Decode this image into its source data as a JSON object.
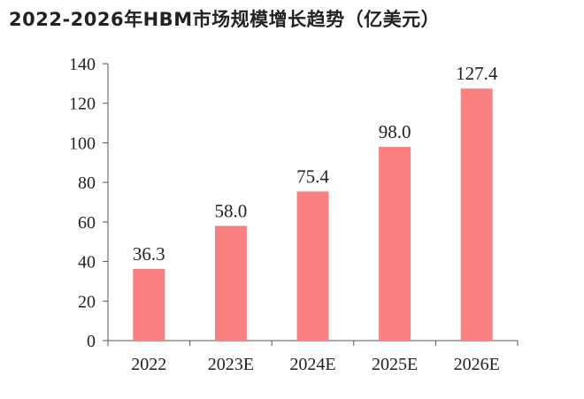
{
  "chart_data": {
    "type": "bar",
    "title": "2022-2026年HBM市场规模增长趋势（亿美元）",
    "xlabel": "",
    "ylabel": "",
    "categories": [
      "2022",
      "2023E",
      "2024E",
      "2025E",
      "2026E"
    ],
    "values": [
      36.3,
      58.0,
      75.4,
      98.0,
      127.4
    ],
    "data_labels": [
      "36.3",
      "58.0",
      "75.4",
      "98.0",
      "127.4"
    ],
    "ylim": [
      0,
      140
    ],
    "yticks": [
      0,
      20,
      40,
      60,
      80,
      100,
      120,
      140
    ],
    "grid": false,
    "legend": "none",
    "bar_color": "#f98080",
    "axis_color": "#555555"
  }
}
